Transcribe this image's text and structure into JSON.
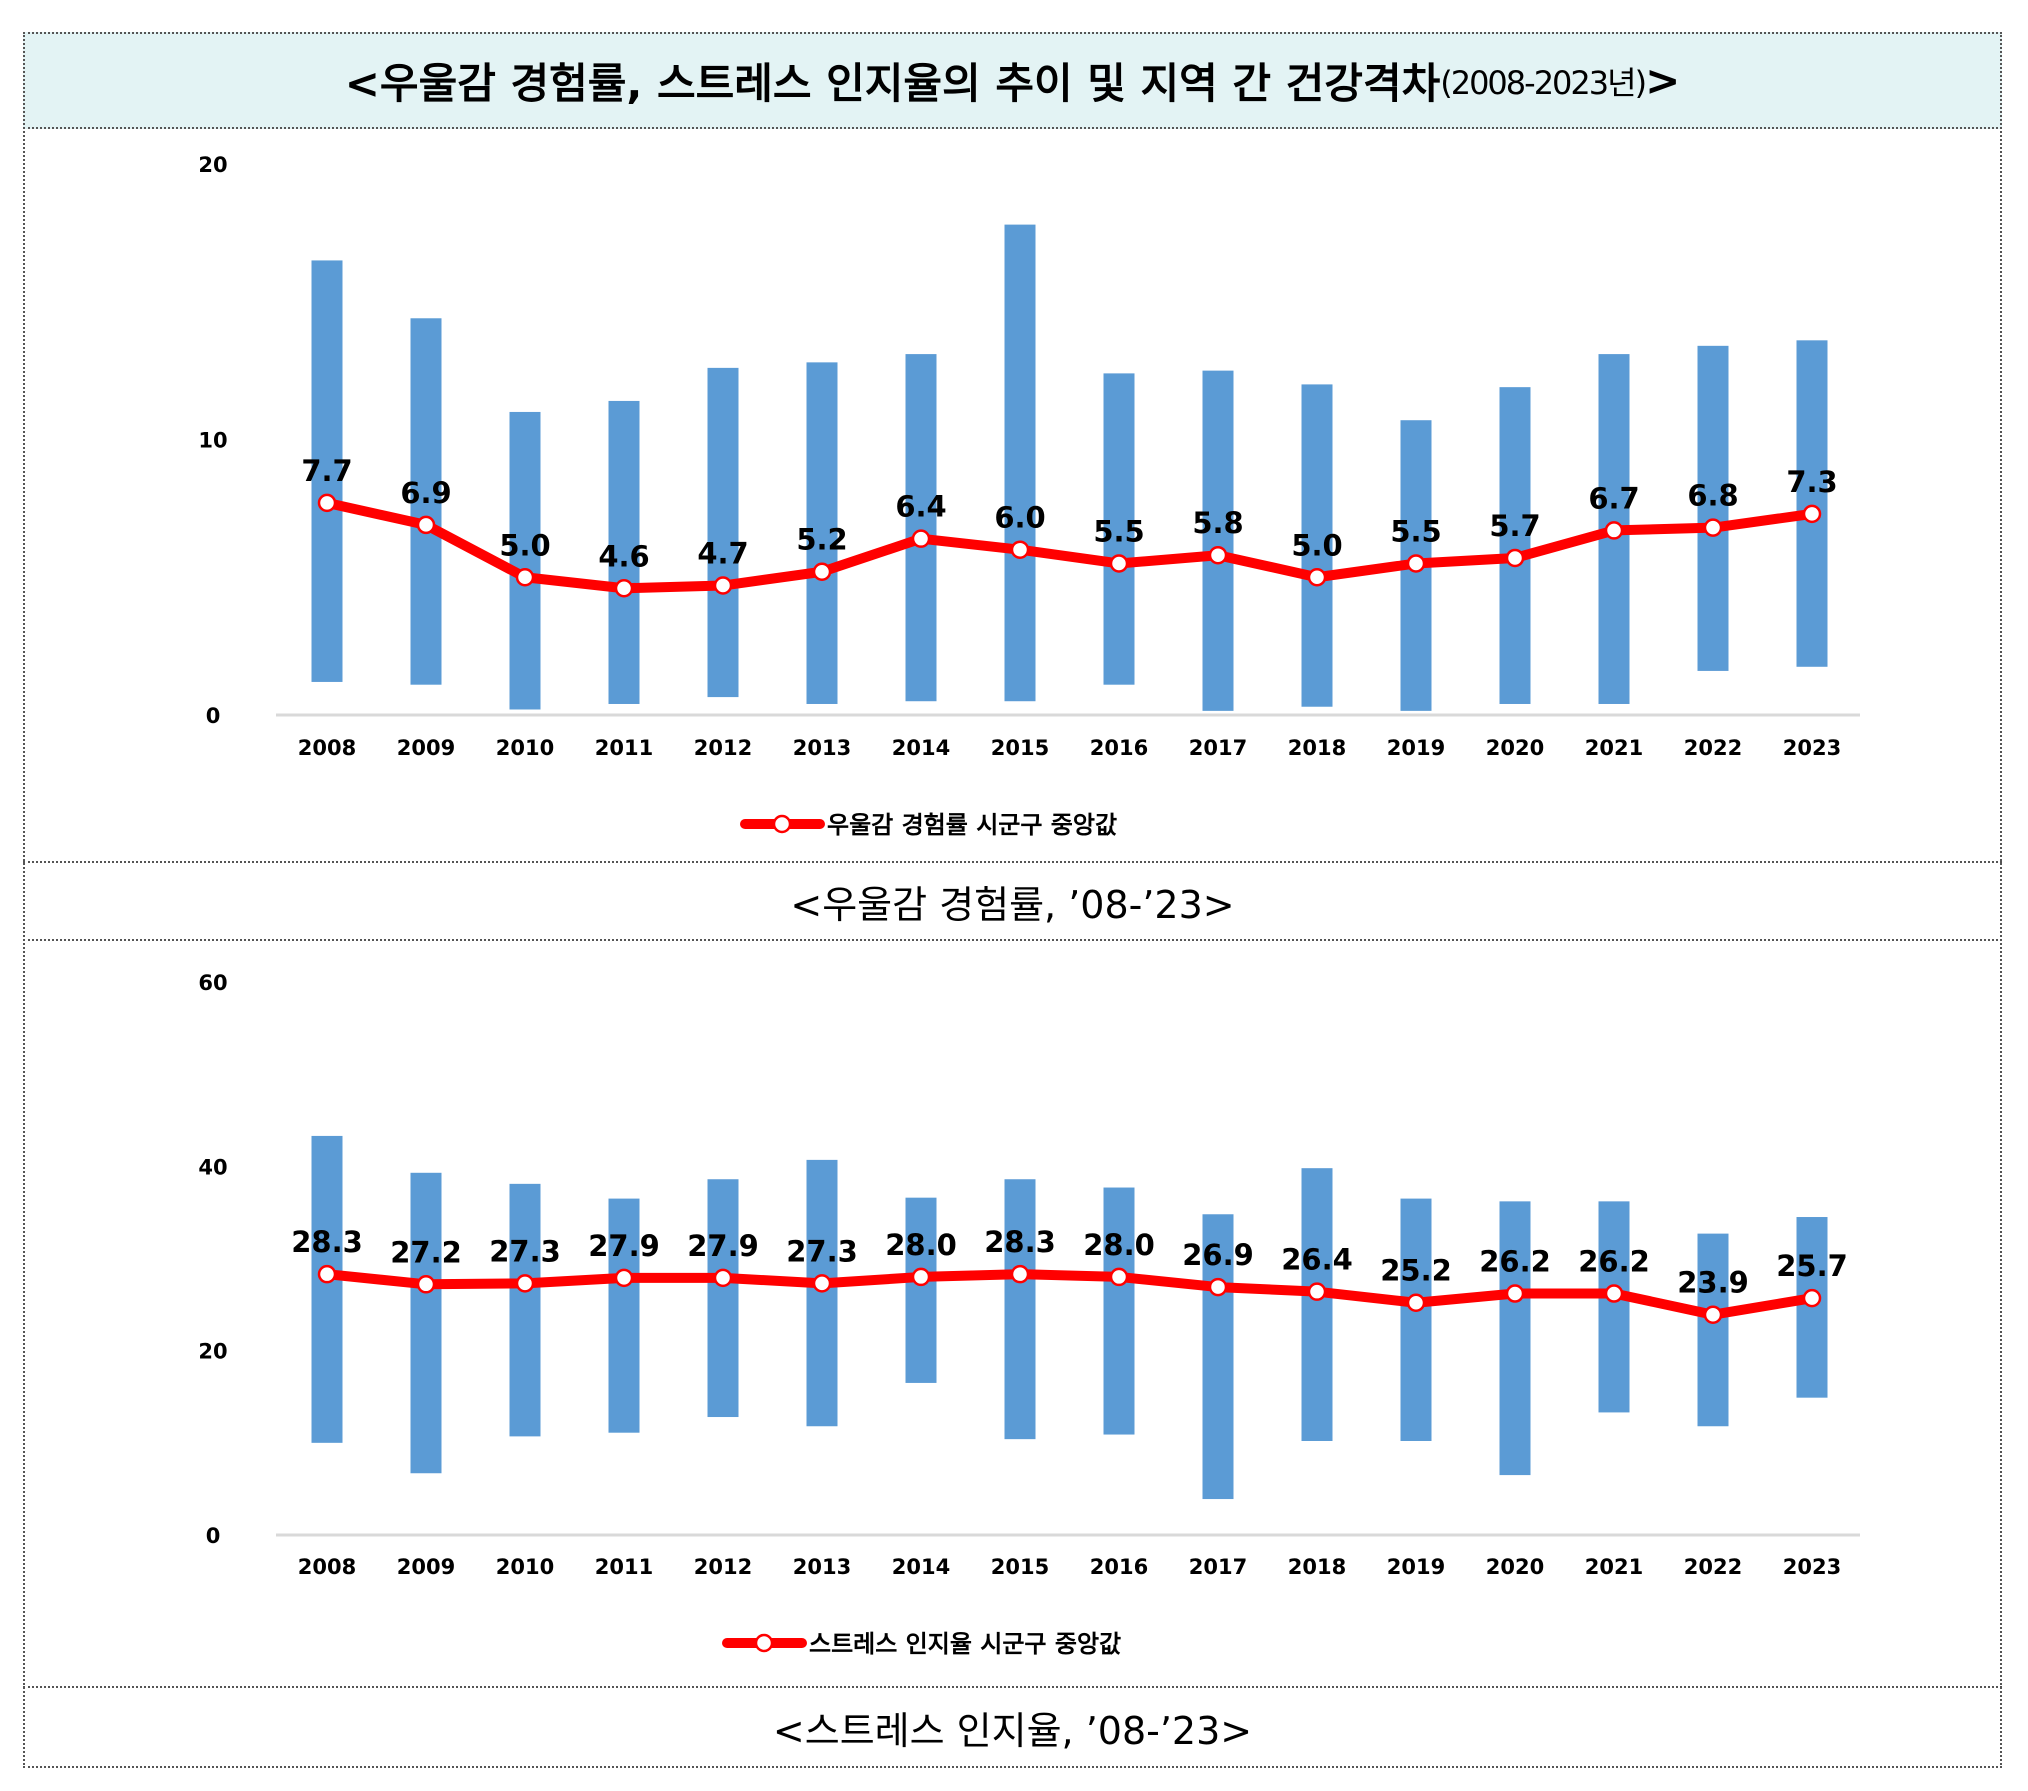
{
  "title": {
    "main": "<우울감 경험률, 스트레스 인지율의 추이 및 지역 간 건강격차",
    "sub": "(2008-2023년)",
    "close": ">"
  },
  "colors": {
    "bar": "#5b9bd5",
    "line": "#ff0000",
    "marker_fill": "#ffffff",
    "title_bg": "#e3f3f4"
  },
  "chart_data": [
    {
      "type": "bar+line",
      "caption": "<우울감  경험률,  ’08-’23>",
      "categories": [
        "2008",
        "2009",
        "2010",
        "2011",
        "2012",
        "2013",
        "2014",
        "2015",
        "2016",
        "2017",
        "2018",
        "2019",
        "2020",
        "2021",
        "2022",
        "2023"
      ],
      "ylim": [
        0,
        20
      ],
      "yticks": [
        "0",
        "10",
        "20"
      ],
      "grid": false,
      "range_bars": {
        "max": [
          16.5,
          14.4,
          11.0,
          11.4,
          12.6,
          12.8,
          13.1,
          17.8,
          12.4,
          12.5,
          12.0,
          10.7,
          11.9,
          13.1,
          13.4,
          13.6
        ],
        "min": [
          1.2,
          1.1,
          0.2,
          0.4,
          0.65,
          0.4,
          0.5,
          0.5,
          1.1,
          0.15,
          0.3,
          0.15,
          0.4,
          0.4,
          1.6,
          1.75
        ]
      },
      "series": [
        {
          "name": "우울감 경험률 시군구 중앙값",
          "values": [
            7.7,
            6.9,
            5.0,
            4.6,
            4.7,
            5.2,
            6.4,
            6.0,
            5.5,
            5.8,
            5.0,
            5.5,
            5.7,
            6.7,
            6.8,
            7.3
          ],
          "labels": [
            "7.7",
            "6.9",
            "5.0",
            "4.6",
            "4.7",
            "5.2",
            "6.4",
            "6.0",
            "5.5",
            "5.8",
            "5.0",
            "5.5",
            "5.7",
            "6.7",
            "6.8",
            "7.3"
          ]
        }
      ],
      "legend": "bottom"
    },
    {
      "type": "bar+line",
      "caption": "<스트레스  인지율,  ’08-’23>",
      "categories": [
        "2008",
        "2009",
        "2010",
        "2011",
        "2012",
        "2013",
        "2014",
        "2015",
        "2016",
        "2017",
        "2018",
        "2019",
        "2020",
        "2021",
        "2022",
        "2023"
      ],
      "ylim": [
        0,
        60
      ],
      "yticks": [
        "0",
        "20",
        "40",
        "60"
      ],
      "grid": false,
      "range_bars": {
        "max": [
          43.3,
          39.3,
          38.1,
          36.5,
          38.6,
          40.7,
          36.6,
          38.6,
          37.7,
          34.8,
          39.8,
          36.5,
          36.2,
          36.2,
          32.7,
          34.5
        ],
        "min": [
          10.0,
          6.7,
          10.7,
          11.1,
          12.8,
          11.8,
          16.5,
          10.4,
          10.9,
          3.9,
          10.2,
          10.2,
          6.5,
          13.3,
          11.8,
          14.9
        ]
      },
      "series": [
        {
          "name": "스트레스 인지율 시군구 중앙값",
          "values": [
            28.3,
            27.2,
            27.3,
            27.9,
            27.9,
            27.3,
            28.0,
            28.3,
            28.0,
            26.9,
            26.4,
            25.2,
            26.2,
            26.2,
            23.9,
            25.7
          ],
          "labels": [
            "28.3",
            "27.2",
            "27.3",
            "27.9",
            "27.9",
            "27.3",
            "28.0",
            "28.3",
            "28.0",
            "26.9",
            "26.4",
            "25.2",
            "26.2",
            "26.2",
            "23.9",
            "25.7"
          ]
        }
      ],
      "legend": "bottom"
    }
  ]
}
